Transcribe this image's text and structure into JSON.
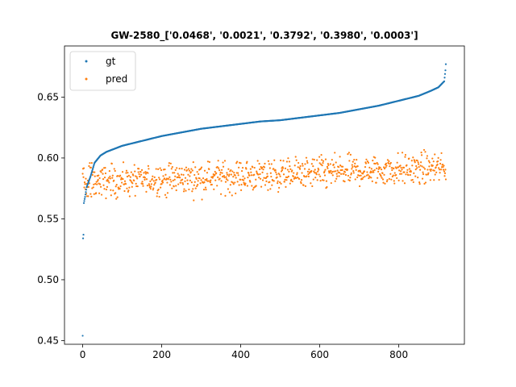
{
  "chart_data": {
    "type": "scatter",
    "title": "GW-2580_['0.0468', '0.0021', '0.3792', '0.3980', '0.0003']",
    "xlabel": "",
    "ylabel": "",
    "xlim": [
      -46,
      966
    ],
    "ylim": [
      0.447,
      0.692
    ],
    "x_ticks": [
      0,
      200,
      400,
      600,
      800
    ],
    "y_ticks": [
      0.45,
      0.5,
      0.55,
      0.6,
      0.65
    ],
    "y_tick_labels": [
      "0.45",
      "0.50",
      "0.55",
      "0.60",
      "0.65"
    ],
    "grid": false,
    "legend": {
      "position": "upper-left",
      "entries": [
        "gt",
        "pred"
      ]
    },
    "series": [
      {
        "name": "gt",
        "color": "#1f77b4",
        "n_points": 920,
        "description": "sorted ascending ground-truth values",
        "key_points": [
          [
            0,
            0.454
          ],
          [
            1,
            0.534
          ],
          [
            2,
            0.537
          ],
          [
            3,
            0.563
          ],
          [
            6,
            0.568
          ],
          [
            10,
            0.576
          ],
          [
            20,
            0.585
          ],
          [
            30,
            0.596
          ],
          [
            45,
            0.602
          ],
          [
            60,
            0.605
          ],
          [
            100,
            0.61
          ],
          [
            150,
            0.614
          ],
          [
            200,
            0.618
          ],
          [
            250,
            0.621
          ],
          [
            300,
            0.624
          ],
          [
            350,
            0.626
          ],
          [
            400,
            0.628
          ],
          [
            450,
            0.63
          ],
          [
            500,
            0.631
          ],
          [
            550,
            0.633
          ],
          [
            600,
            0.635
          ],
          [
            650,
            0.637
          ],
          [
            700,
            0.64
          ],
          [
            750,
            0.643
          ],
          [
            800,
            0.647
          ],
          [
            850,
            0.651
          ],
          [
            880,
            0.655
          ],
          [
            900,
            0.658
          ],
          [
            915,
            0.663
          ],
          [
            918,
            0.672
          ],
          [
            919,
            0.677
          ],
          [
            920,
            0.681
          ]
        ]
      },
      {
        "name": "pred",
        "color": "#ff7f0e",
        "n_points": 920,
        "description": "noisy predictions, mean rising from ~0.580 to ~0.592",
        "mean_start": 0.58,
        "mean_end": 0.592,
        "spread": 0.009,
        "min": 0.557,
        "max": 0.613
      }
    ]
  }
}
